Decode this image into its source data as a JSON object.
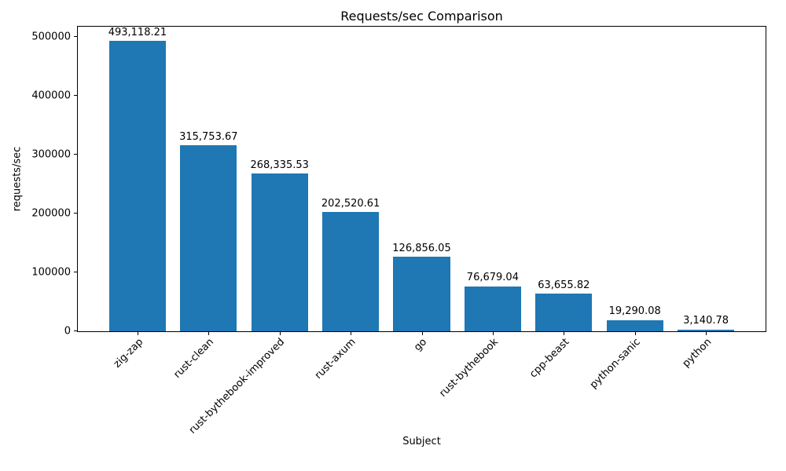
{
  "chart_data": {
    "type": "bar",
    "title": "Requests/sec Comparison",
    "xlabel": "Subject",
    "ylabel": "requests/sec",
    "categories": [
      "zig-zap",
      "rust-clean",
      "rust-bythebook-improved",
      "rust-axum",
      "go",
      "rust-bythebook",
      "cpp-beast",
      "python-sanic",
      "python"
    ],
    "values": [
      493118.21,
      315753.67,
      268335.53,
      202520.61,
      126856.05,
      76679.04,
      63655.82,
      19290.08,
      3140.78
    ],
    "value_labels": [
      "493,118.21",
      "315,753.67",
      "268,335.53",
      "202,520.61",
      "126,856.05",
      "76,679.04",
      "63,655.82",
      "19,290.08",
      "3,140.78"
    ],
    "y_ticks": [
      0,
      100000,
      200000,
      300000,
      400000,
      500000
    ],
    "y_tick_labels": [
      "0",
      "100000",
      "200000",
      "300000",
      "400000",
      "500000"
    ],
    "ylim": [
      0,
      517774
    ],
    "bar_color": "#1f77b4",
    "grid": false,
    "legend": null,
    "x_tick_rotation": 45
  }
}
